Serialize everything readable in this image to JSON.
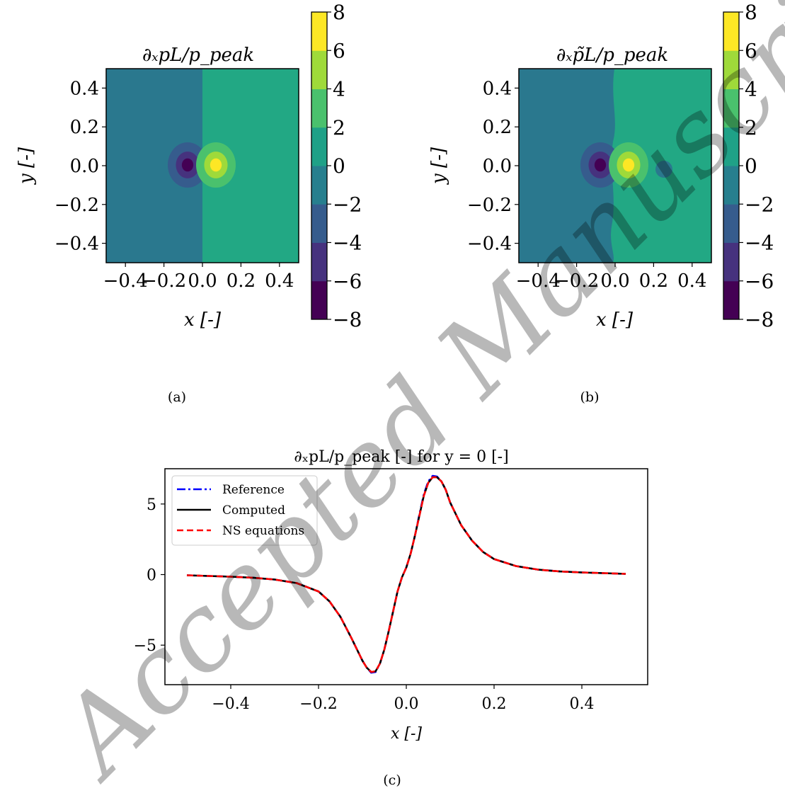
{
  "watermark": "Accepted Manuscript",
  "panels": {
    "a": {
      "title": "∂ₓpL/p_peak",
      "caption": "(a)"
    },
    "b": {
      "title": "∂ₓp̃L/p_peak",
      "caption": "(b)"
    },
    "c": {
      "title": "∂ₓpL/p_peak [-] for y = 0 [-]",
      "caption": "(c)"
    }
  },
  "colors": {
    "reference": "#0000ff",
    "computed": "#000000",
    "ns_equations": "#ff0000",
    "colormap": "viridis"
  },
  "chart_data": [
    {
      "panel": "a",
      "type": "heatmap",
      "title": "∂ₓpL/p_peak",
      "xlabel": "x [-]",
      "ylabel": "y [-]",
      "xlim": [
        -0.5,
        0.5
      ],
      "ylim": [
        -0.5,
        0.5
      ],
      "xticks": [
        "−0.4",
        "−0.2",
        "0.0",
        "0.2",
        "0.4"
      ],
      "yticks": [
        "0.4",
        "0.2",
        "0.0",
        "−0.2",
        "−0.4"
      ],
      "colorbar": {
        "ticks": [
          "8",
          "6",
          "4",
          "2",
          "0",
          "−2",
          "−4",
          "−6",
          "−8"
        ],
        "levels": [
          -8,
          -6,
          -4,
          -2,
          0,
          2,
          4,
          6,
          8
        ]
      },
      "features": [
        {
          "x": -0.07,
          "y": 0.0,
          "peak": -7
        },
        {
          "x": 0.07,
          "y": 0.0,
          "peak": 7
        }
      ]
    },
    {
      "panel": "b",
      "type": "heatmap",
      "title": "∂ₓp̃L/p_peak",
      "xlabel": "x [-]",
      "ylabel": "y [-]",
      "xlim": [
        -0.5,
        0.5
      ],
      "ylim": [
        -0.5,
        0.5
      ],
      "xticks": [
        "−0.4",
        "−0.2",
        "0.0",
        "0.2",
        "0.4"
      ],
      "yticks": [
        "0.4",
        "0.2",
        "0.0",
        "−0.2",
        "−0.4"
      ],
      "colorbar": {
        "ticks": [
          "8",
          "6",
          "4",
          "2",
          "0",
          "−2",
          "−4",
          "−6",
          "−8"
        ],
        "levels": [
          -8,
          -6,
          -4,
          -2,
          0,
          2,
          4,
          6,
          8
        ]
      },
      "features": [
        {
          "x": -0.07,
          "y": 0.0,
          "peak": -7
        },
        {
          "x": 0.08,
          "y": 0.0,
          "peak": 7
        },
        {
          "x": 0.24,
          "y": 0.0,
          "peak": -1
        }
      ]
    },
    {
      "panel": "c",
      "type": "line",
      "title": "∂ₓpL/p_peak [-] for y = 0 [-]",
      "xlabel": "x [-]",
      "ylabel": "",
      "xlim": [
        -0.55,
        0.55
      ],
      "ylim": [
        -7.8,
        7.5
      ],
      "xticks": [
        "−0.4",
        "−0.2",
        "0.0",
        "0.2",
        "0.4"
      ],
      "yticks": [
        "5",
        "0",
        "−5"
      ],
      "legend_position": "top-left",
      "x": [
        -0.5,
        -0.45,
        -0.4,
        -0.35,
        -0.3,
        -0.25,
        -0.2,
        -0.175,
        -0.15,
        -0.125,
        -0.1,
        -0.09,
        -0.08,
        -0.07,
        -0.06,
        -0.05,
        -0.04,
        -0.03,
        -0.02,
        -0.01,
        0.0,
        0.01,
        0.02,
        0.03,
        0.04,
        0.05,
        0.06,
        0.07,
        0.08,
        0.09,
        0.1,
        0.125,
        0.15,
        0.175,
        0.2,
        0.25,
        0.3,
        0.35,
        0.4,
        0.45,
        0.5
      ],
      "series": [
        {
          "name": "Reference",
          "style": "dashdot",
          "values": [
            -0.05,
            -0.1,
            -0.15,
            -0.22,
            -0.35,
            -0.6,
            -1.2,
            -1.9,
            -3.0,
            -4.5,
            -6.1,
            -6.6,
            -6.95,
            -6.9,
            -6.3,
            -5.3,
            -4.0,
            -2.6,
            -1.2,
            -0.2,
            0.5,
            1.5,
            2.8,
            4.3,
            5.7,
            6.6,
            7.0,
            6.95,
            6.6,
            6.0,
            5.1,
            3.5,
            2.4,
            1.6,
            1.1,
            0.6,
            0.35,
            0.22,
            0.15,
            0.1,
            0.05
          ]
        },
        {
          "name": "Computed",
          "style": "solid",
          "values": [
            -0.05,
            -0.1,
            -0.15,
            -0.22,
            -0.35,
            -0.6,
            -1.2,
            -1.9,
            -3.0,
            -4.5,
            -6.1,
            -6.6,
            -6.9,
            -6.85,
            -6.3,
            -5.3,
            -4.0,
            -2.6,
            -1.2,
            -0.2,
            0.5,
            1.5,
            2.8,
            4.2,
            5.6,
            6.5,
            6.9,
            6.9,
            6.6,
            6.0,
            5.1,
            3.5,
            2.4,
            1.6,
            1.1,
            0.6,
            0.35,
            0.22,
            0.15,
            0.1,
            0.05
          ]
        },
        {
          "name": "NS equations",
          "style": "dashed",
          "values": [
            -0.05,
            -0.1,
            -0.15,
            -0.22,
            -0.35,
            -0.6,
            -1.2,
            -1.9,
            -3.0,
            -4.5,
            -6.1,
            -6.6,
            -6.9,
            -6.85,
            -6.3,
            -5.3,
            -4.0,
            -2.6,
            -1.2,
            -0.2,
            0.5,
            1.5,
            2.8,
            4.2,
            5.6,
            6.5,
            6.9,
            6.9,
            6.6,
            6.0,
            5.1,
            3.5,
            2.4,
            1.6,
            1.1,
            0.6,
            0.35,
            0.22,
            0.15,
            0.1,
            0.05
          ]
        }
      ]
    }
  ]
}
